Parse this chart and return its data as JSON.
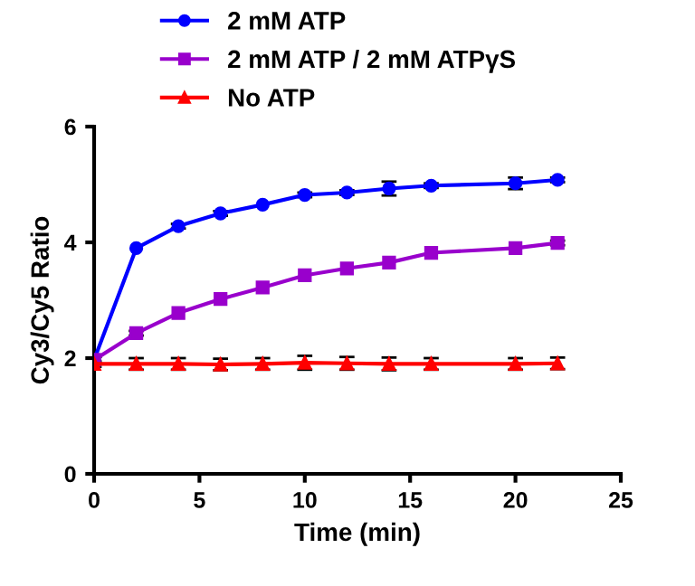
{
  "chart_data": {
    "type": "line",
    "xlabel": "Time (min)",
    "ylabel": "Cy3/Cy5 Ratio",
    "x": [
      0,
      2,
      4,
      6,
      8,
      10,
      12,
      14,
      16,
      20,
      22
    ],
    "xlim": [
      0,
      25
    ],
    "xticks": [
      0,
      5,
      10,
      15,
      20,
      25
    ],
    "ylim": [
      0,
      6
    ],
    "yticks": [
      0,
      2,
      4,
      6
    ],
    "grid": false,
    "legend": "top",
    "line_style": "solid",
    "series": [
      {
        "name": "2 mM ATP",
        "color": "#0000ff",
        "marker": "circle",
        "values": [
          1.97,
          3.9,
          4.28,
          4.5,
          4.65,
          4.82,
          4.86,
          4.93,
          4.98,
          5.02,
          5.08
        ],
        "errors": [
          0.05,
          null,
          0.04,
          0.04,
          null,
          0.04,
          0.04,
          0.12,
          0.04,
          0.1,
          0.04
        ]
      },
      {
        "name": "2 mM ATP / 2 mM ATPγS",
        "color": "#9900cc",
        "marker": "square",
        "values": [
          1.97,
          2.43,
          2.78,
          3.02,
          3.22,
          3.43,
          3.55,
          3.65,
          3.82,
          3.9,
          3.99
        ],
        "errors": [
          0.05,
          0.04,
          null,
          null,
          null,
          null,
          null,
          null,
          null,
          null,
          0.04
        ]
      },
      {
        "name": "No ATP",
        "color": "#ff0000",
        "marker": "triangle",
        "values": [
          1.9,
          1.9,
          1.9,
          1.89,
          1.9,
          1.92,
          1.91,
          1.9,
          1.9,
          1.9,
          1.91
        ],
        "errors": [
          0.05,
          0.1,
          0.1,
          0.1,
          0.1,
          0.12,
          0.11,
          0.11,
          0.1,
          0.1,
          0.1
        ]
      }
    ]
  }
}
